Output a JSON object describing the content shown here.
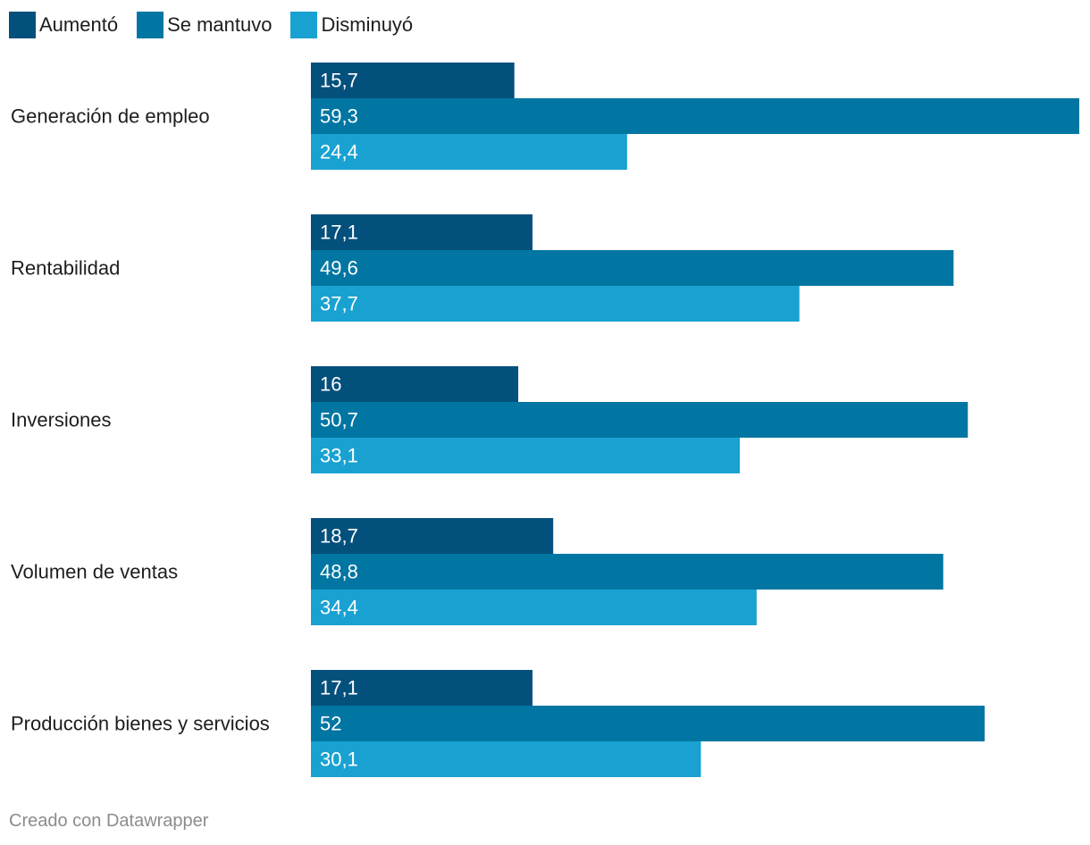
{
  "chart_data": {
    "type": "bar",
    "orientation": "horizontal",
    "categories": [
      "Generación de empleo",
      "Rentabilidad",
      "Inversiones",
      "Volumen de ventas",
      "Producción bienes y servicios"
    ],
    "series": [
      {
        "name": "Aumentó",
        "color": "#04507c",
        "values": [
          15.7,
          17.1,
          16,
          18.7,
          17.1
        ],
        "labels": [
          "15,7",
          "17,1",
          "16",
          "18,7",
          "17,1"
        ]
      },
      {
        "name": "Se mantuvo",
        "color": "#0176a2",
        "values": [
          59.3,
          49.6,
          50.7,
          48.8,
          52
        ],
        "labels": [
          "59,3",
          "49,6",
          "50,7",
          "48,8",
          "52"
        ]
      },
      {
        "name": "Disminuyó",
        "color": "#19a2d1",
        "values": [
          24.4,
          37.7,
          33.1,
          34.4,
          30.1
        ],
        "labels": [
          "24,4",
          "37,7",
          "33,1",
          "34,4",
          "30,1"
        ]
      }
    ],
    "xlim": [
      0,
      59.3
    ],
    "legend_position": "top-left"
  },
  "footer": {
    "credit": "Creado con Datawrapper"
  }
}
